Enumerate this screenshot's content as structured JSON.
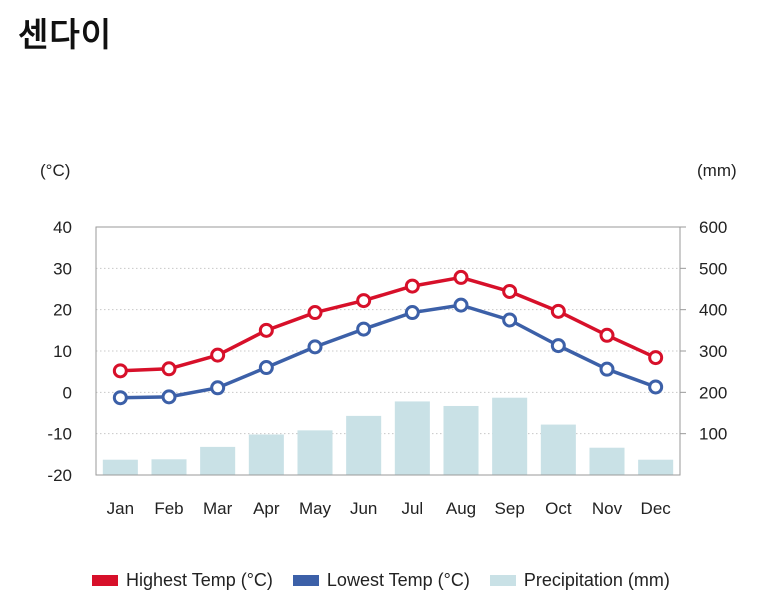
{
  "title": "센다이",
  "chart_data": {
    "type": "bar",
    "categories": [
      "Jan",
      "Feb",
      "Mar",
      "Apr",
      "May",
      "Jun",
      "Jul",
      "Aug",
      "Sep",
      "Oct",
      "Nov",
      "Dec"
    ],
    "left_axis": {
      "unit": "(°C)",
      "ticks": [
        40,
        30,
        20,
        10,
        0,
        -10,
        -20
      ],
      "ylim": [
        -20,
        40
      ]
    },
    "right_axis": {
      "unit": "(mm)",
      "ticks": [
        600,
        500,
        400,
        300,
        200,
        100
      ],
      "ylim": [
        0,
        600
      ]
    },
    "grid": true,
    "legend_position": "bottom",
    "series": [
      {
        "name": "Highest Temp (°C)",
        "type": "line",
        "axis": "left",
        "color": "#d7102a",
        "values": [
          5.2,
          5.7,
          9.0,
          15.0,
          19.3,
          22.2,
          25.7,
          27.8,
          24.4,
          19.6,
          13.8,
          8.4
        ]
      },
      {
        "name": "Lowest Temp (°C)",
        "type": "line",
        "axis": "right",
        "color": "#3c60a8",
        "values": [
          -1.3,
          -1.1,
          1.1,
          6.0,
          11.0,
          15.3,
          19.3,
          21.1,
          17.5,
          11.3,
          5.6,
          1.3
        ]
      },
      {
        "name": "Precipitation (mm)",
        "type": "bar",
        "axis": "right",
        "color": "#c9e1e6",
        "values": [
          37,
          38,
          68,
          98,
          108,
          143,
          178,
          167,
          187,
          122,
          66,
          37
        ]
      }
    ]
  }
}
